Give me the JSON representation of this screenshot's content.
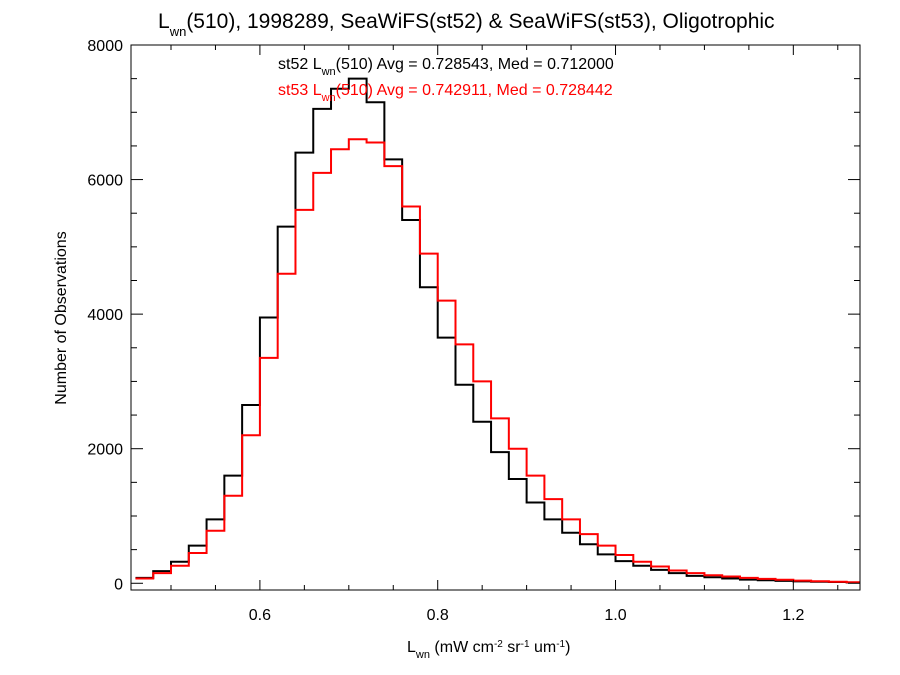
{
  "chart_data": {
    "type": "histogram",
    "title": {
      "prefix": "L",
      "prefix_sub": "wn",
      "rest": "(510), 1998289, SeaWiFS(st52) & SeaWiFS(st53), Oligotrophic"
    },
    "xlabel": {
      "main": "L",
      "main_sub": "wn",
      "units_a": " (mW cm",
      "units_a_sup": "-2",
      "units_b": " sr",
      "units_b_sup": "-1",
      "units_c": " um",
      "units_c_sup": "-1",
      "units_d": ")"
    },
    "ylabel": "Number of Observations",
    "xlim": [
      0.455,
      1.275
    ],
    "ylim": [
      -100,
      8000
    ],
    "x_ticks": [
      0.6,
      0.8,
      1.0,
      1.2
    ],
    "x_tick_labels": [
      "0.6",
      "0.8",
      "1.0",
      "1.2"
    ],
    "y_ticks": [
      0,
      2000,
      4000,
      6000,
      8000
    ],
    "y_tick_labels": [
      "0",
      "2000",
      "4000",
      "6000",
      "8000"
    ],
    "grid": false,
    "annotations": [
      {
        "series": "st52",
        "color": "#000000",
        "pre": "st52 L",
        "sub": "wn",
        "post": "(510) Avg = 0.728543, Med = 0.712000"
      },
      {
        "series": "st53",
        "color": "#ff0000",
        "pre": "st53 L",
        "sub": "wn",
        "post": "(510) Avg = 0.742911, Med = 0.728442"
      }
    ],
    "series": [
      {
        "name": "st52",
        "color": "#000000",
        "x": [
          0.46,
          0.48,
          0.5,
          0.52,
          0.54,
          0.56,
          0.58,
          0.6,
          0.62,
          0.64,
          0.66,
          0.68,
          0.7,
          0.72,
          0.74,
          0.76,
          0.78,
          0.8,
          0.82,
          0.84,
          0.86,
          0.88,
          0.9,
          0.92,
          0.94,
          0.96,
          0.98,
          1.0,
          1.02,
          1.04,
          1.06,
          1.08,
          1.1,
          1.12,
          1.14,
          1.16,
          1.18,
          1.2,
          1.22,
          1.24,
          1.26,
          1.275
        ],
        "values": [
          80,
          180,
          320,
          560,
          950,
          1600,
          2650,
          3950,
          5300,
          6400,
          7050,
          7350,
          7500,
          7150,
          6300,
          5400,
          4400,
          3650,
          2950,
          2400,
          1950,
          1550,
          1200,
          950,
          750,
          580,
          430,
          330,
          260,
          200,
          150,
          110,
          90,
          70,
          55,
          45,
          35,
          28,
          22,
          18,
          12,
          5
        ]
      },
      {
        "name": "st53",
        "color": "#ff0000",
        "x": [
          0.46,
          0.48,
          0.5,
          0.52,
          0.54,
          0.56,
          0.58,
          0.6,
          0.62,
          0.64,
          0.66,
          0.68,
          0.7,
          0.72,
          0.74,
          0.76,
          0.78,
          0.8,
          0.82,
          0.84,
          0.86,
          0.88,
          0.9,
          0.92,
          0.94,
          0.96,
          0.98,
          1.0,
          1.02,
          1.04,
          1.06,
          1.08,
          1.1,
          1.12,
          1.14,
          1.16,
          1.18,
          1.2,
          1.22,
          1.24,
          1.26,
          1.275
        ],
        "values": [
          70,
          150,
          260,
          450,
          780,
          1300,
          2200,
          3350,
          4600,
          5550,
          6100,
          6450,
          6600,
          6550,
          6200,
          5600,
          4900,
          4200,
          3550,
          3000,
          2450,
          2000,
          1600,
          1250,
          950,
          730,
          560,
          420,
          320,
          250,
          190,
          150,
          120,
          100,
          80,
          65,
          52,
          40,
          30,
          22,
          15,
          6
        ]
      }
    ]
  }
}
